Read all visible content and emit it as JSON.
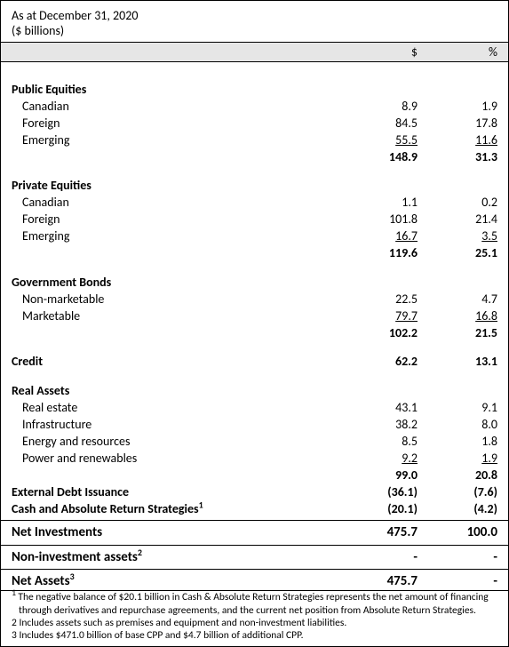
{
  "header": {
    "line1": "As at December 31, 2020",
    "line2": "($ billions)"
  },
  "cols": {
    "c1": "$",
    "c2": "%"
  },
  "sections": {
    "pe": {
      "title": "Public Equities",
      "rows": [
        {
          "l": "Canadian",
          "v1": "8.9",
          "v2": "1.9"
        },
        {
          "l": "Foreign",
          "v1": "84.5",
          "v2": "17.8"
        },
        {
          "l": "Emerging",
          "v1": "55.5",
          "v2": "11.6",
          "u": true
        }
      ],
      "sub": {
        "v1": "148.9",
        "v2": "31.3"
      }
    },
    "pr": {
      "title": "Private Equities",
      "rows": [
        {
          "l": "Canadian",
          "v1": "1.1",
          "v2": "0.2"
        },
        {
          "l": "Foreign",
          "v1": "101.8",
          "v2": "21.4"
        },
        {
          "l": "Emerging",
          "v1": "16.7",
          "v2": "3.5",
          "u": true
        }
      ],
      "sub": {
        "v1": "119.6",
        "v2": "25.1"
      }
    },
    "gb": {
      "title": "Government Bonds",
      "rows": [
        {
          "l": "Non-marketable",
          "v1": "22.5",
          "v2": "4.7"
        },
        {
          "l": "Marketable",
          "v1": "79.7",
          "v2": "16.8",
          "u": true
        }
      ],
      "sub": {
        "v1": "102.2",
        "v2": "21.5"
      }
    },
    "cr": {
      "title": "Credit",
      "v1": "62.2",
      "v2": "13.1"
    },
    "ra": {
      "title": "Real Assets",
      "rows": [
        {
          "l": "Real estate",
          "v1": "43.1",
          "v2": "9.1"
        },
        {
          "l": "Infrastructure",
          "v1": "38.2",
          "v2": "8.0"
        },
        {
          "l": "Energy and resources",
          "v1": "8.5",
          "v2": "1.8"
        },
        {
          "l": "Power and renewables",
          "v1": "9.2",
          "v2": "1.9",
          "u": true
        }
      ],
      "sub": {
        "v1": "99.0",
        "v2": "20.8"
      }
    },
    "edi": {
      "l": "External Debt Issuance",
      "v1": "(36.1)",
      "v2": "(7.6)"
    },
    "cars": {
      "l": "Cash and Absolute Return Strategies",
      "sup": "1",
      "v1": "(20.1)",
      "v2": "(4.2)"
    },
    "ni": {
      "l": "Net Investments",
      "v1": "475.7",
      "v2": "100.0"
    },
    "nia": {
      "l": "Non-investment assets",
      "sup": "2",
      "v1": "-",
      "v2": "-"
    },
    "na": {
      "l": "Net Assets",
      "sup": "3",
      "v1": "475.7",
      "v2": "-"
    }
  },
  "footnotes": {
    "f1": "The negative balance of $20.1 billion in Cash & Absolute Return Strategies represents the net amount of financing through derivatives and repurchase agreements, and the current net position from Absolute Return Strategies.",
    "f2": "Includes assets such as premises and equipment and non-investment liabilities.",
    "f3": "Includes $471.0 billion of base CPP and $4.7 billion of additional CPP."
  }
}
